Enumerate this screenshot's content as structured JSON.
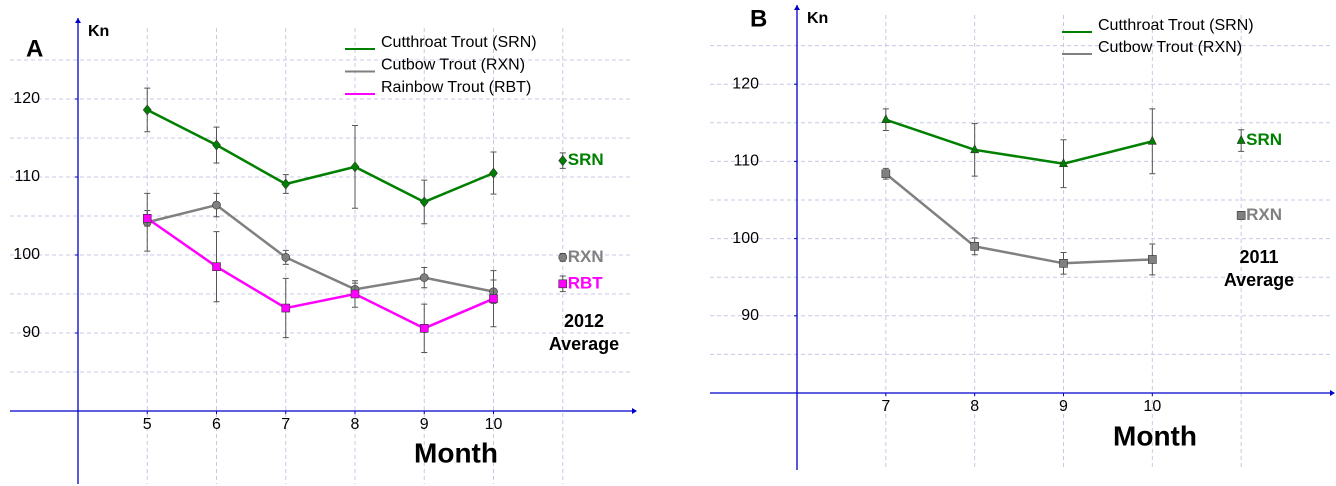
{
  "chart_data": [
    {
      "type": "line",
      "panel": "A",
      "y_label": "Kn",
      "x_label": "Month",
      "x": [
        5,
        6,
        7,
        8,
        9,
        10
      ],
      "xlim": [
        4,
        12
      ],
      "xticks": [
        5,
        6,
        7,
        8,
        9,
        10
      ],
      "xgrid": [
        5,
        6,
        7,
        8,
        9,
        10,
        11
      ],
      "ylim": [
        80,
        130
      ],
      "yticks": [
        90,
        100,
        110,
        120
      ],
      "ygrid": [
        85,
        90,
        95,
        100,
        105,
        110,
        115,
        120,
        125
      ],
      "average_caption": [
        "2012",
        "Average"
      ],
      "series": [
        {
          "name": "Cutthroat Trout (SRN)",
          "color": "#008000",
          "marker": "diamond",
          "values": [
            118.6,
            114.1,
            109.1,
            111.3,
            106.8,
            110.5
          ],
          "errors": [
            2.8,
            2.3,
            1.2,
            5.3,
            2.8,
            2.7
          ],
          "average": 112.1,
          "average_error": 1.0,
          "average_label": "SRN"
        },
        {
          "name": "Cutbow Trout (RXN)",
          "color": "#808080",
          "marker": "circle",
          "values": [
            104.2,
            106.4,
            99.7,
            95.6,
            97.1,
            95.3
          ],
          "errors": [
            3.7,
            1.5,
            0.9,
            0.8,
            1.3,
            1.5
          ],
          "average": 99.7,
          "average_error": 0.5,
          "average_label": "RXN"
        },
        {
          "name": "Rainbow Trout (RBT)",
          "color": "#ff00ff",
          "marker": "square",
          "values": [
            104.7,
            98.5,
            93.2,
            95.0,
            90.6,
            94.4
          ],
          "errors": [
            1.0,
            4.5,
            3.8,
            1.7,
            3.1,
            3.6
          ],
          "average": 96.3,
          "average_error": 1.0,
          "average_label": "RBT"
        }
      ]
    },
    {
      "type": "line",
      "panel": "B",
      "y_label": "Kn",
      "x_label": "Month",
      "x": [
        7,
        8,
        9,
        10
      ],
      "xlim": [
        6,
        12
      ],
      "xticks": [
        7,
        8,
        9,
        10
      ],
      "xgrid": [
        7,
        8,
        9,
        10,
        11
      ],
      "ylim": [
        80,
        130
      ],
      "yticks": [
        90,
        100,
        110,
        120
      ],
      "ygrid": [
        85,
        90,
        95,
        100,
        105,
        110,
        115,
        120,
        125
      ],
      "average_caption": [
        "2011",
        "Average"
      ],
      "series": [
        {
          "name": "Cutthroat Trout (SRN)",
          "color": "#008000",
          "marker": "triangle",
          "values": [
            115.4,
            111.5,
            109.7,
            112.6
          ],
          "errors": [
            1.4,
            3.4,
            3.1,
            4.2
          ],
          "average": 112.7,
          "average_error": 1.4,
          "average_label": "SRN"
        },
        {
          "name": "Cutbow Trout (RXN)",
          "color": "#808080",
          "marker": "square",
          "values": [
            108.4,
            99.0,
            96.8,
            97.3
          ],
          "errors": [
            0.7,
            1.1,
            1.4,
            2.0
          ],
          "average": 103.0,
          "average_error": 0.5,
          "average_label": "RXN"
        }
      ]
    }
  ]
}
